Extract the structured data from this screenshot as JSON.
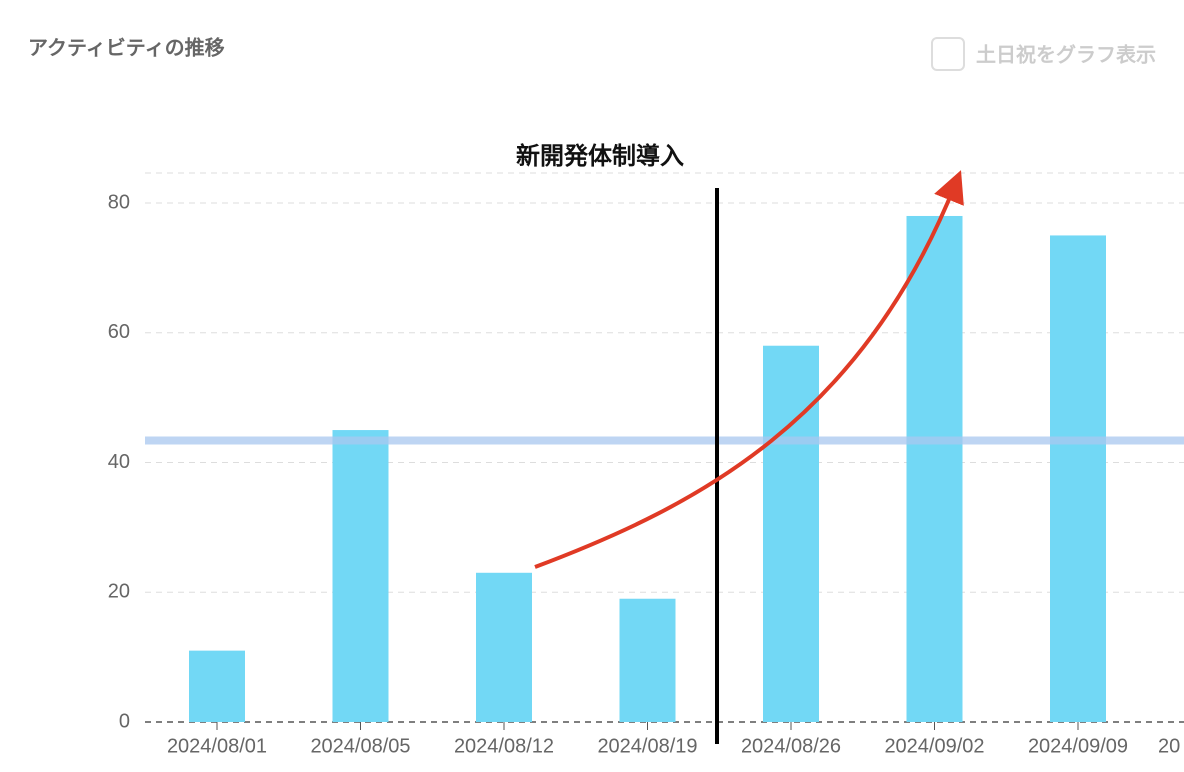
{
  "header": {
    "title": "アクティビティの推移",
    "checkbox_label": "土日祝をグラフ表示"
  },
  "chart_data": {
    "type": "bar",
    "categories": [
      "2024/08/01",
      "2024/08/05",
      "2024/08/12",
      "2024/08/19",
      "2024/08/26",
      "2024/09/02",
      "2024/09/09",
      "20"
    ],
    "values": [
      11,
      45,
      23,
      19,
      58,
      78,
      75,
      null
    ],
    "color": "#72d8f5",
    "reference_line": 43.4,
    "reference_color": "#a9c8f0",
    "annotation": "新開発体制導入",
    "ylim": [
      0,
      80
    ],
    "yticks": [
      0,
      20,
      40,
      60,
      80
    ],
    "grid": true
  }
}
